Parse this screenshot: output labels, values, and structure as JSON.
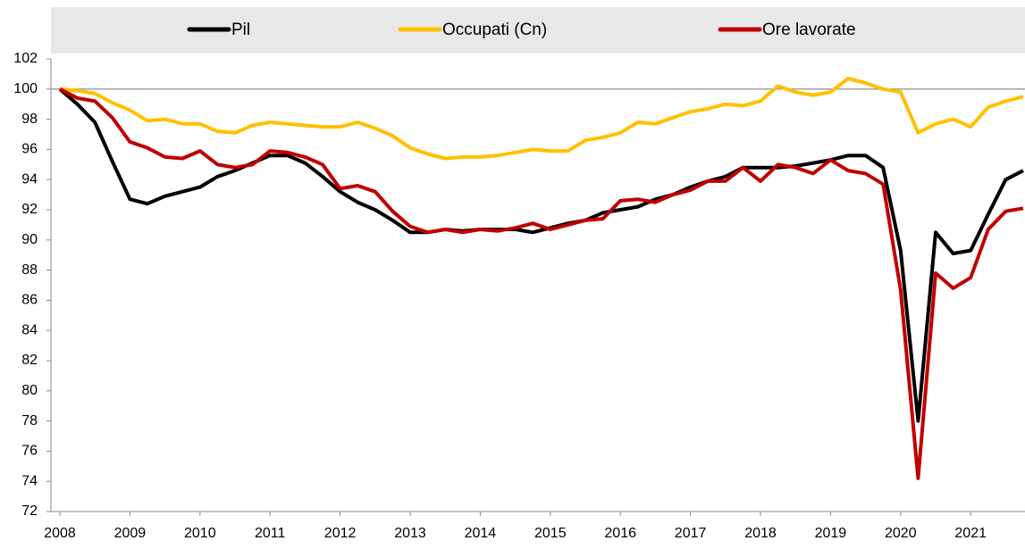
{
  "chart_data": {
    "type": "line",
    "categories": [
      "2008",
      null,
      null,
      null,
      "2009",
      null,
      null,
      null,
      "2010",
      null,
      null,
      null,
      "2011",
      null,
      null,
      null,
      "2012",
      null,
      null,
      null,
      "2013",
      null,
      null,
      null,
      "2014",
      null,
      null,
      null,
      "2015",
      null,
      null,
      null,
      "2016",
      null,
      null,
      null,
      "2017",
      null,
      null,
      null,
      "2018",
      null,
      null,
      null,
      "2019",
      null,
      null,
      null,
      "2020",
      null,
      null,
      null,
      "2021",
      null,
      null,
      null
    ],
    "series": [
      {
        "name": "Pil",
        "color": "#000000",
        "values": [
          100,
          99.0,
          97.8,
          95.2,
          92.7,
          92.4,
          92.9,
          93.2,
          93.5,
          94.2,
          94.6,
          95.1,
          95.6,
          95.6,
          95.1,
          94.2,
          93.2,
          92.5,
          92.0,
          91.3,
          90.5,
          90.5,
          90.7,
          90.6,
          90.7,
          90.7,
          90.7,
          90.5,
          90.8,
          91.1,
          91.3,
          91.8,
          92.0,
          92.2,
          92.7,
          93.0,
          93.5,
          93.9,
          94.2,
          94.8,
          94.8,
          94.8,
          94.9,
          95.1,
          95.3,
          95.6,
          95.6,
          94.8,
          89.3,
          78.0,
          90.5,
          89.1,
          89.3,
          91.7,
          94.0,
          94.6
        ]
      },
      {
        "name": "Occupati (Cn)",
        "color": "#ffc000",
        "values": [
          100,
          99.9,
          99.7,
          99.1,
          98.6,
          97.9,
          98.0,
          97.7,
          97.7,
          97.2,
          97.1,
          97.6,
          97.8,
          97.7,
          97.6,
          97.5,
          97.5,
          97.8,
          97.4,
          96.9,
          96.1,
          95.7,
          95.4,
          95.5,
          95.5,
          95.6,
          95.8,
          96.0,
          95.9,
          95.9,
          96.6,
          96.8,
          97.1,
          97.8,
          97.7,
          98.1,
          98.5,
          98.7,
          99.0,
          98.9,
          99.2,
          100.2,
          99.8,
          99.6,
          99.8,
          100.7,
          100.4,
          100.0,
          99.8,
          97.1,
          97.7,
          98.0,
          97.5,
          98.8,
          99.2,
          99.5
        ]
      },
      {
        "name": "Ore lavorate",
        "color": "#c00000",
        "values": [
          100,
          99.4,
          99.2,
          98.1,
          96.5,
          96.1,
          95.5,
          95.4,
          95.9,
          95.0,
          94.8,
          95.0,
          95.9,
          95.8,
          95.5,
          95.0,
          93.4,
          93.6,
          93.2,
          91.9,
          90.9,
          90.5,
          90.7,
          90.5,
          90.7,
          90.6,
          90.8,
          91.1,
          90.7,
          91.0,
          91.3,
          91.4,
          92.6,
          92.7,
          92.5,
          93.0,
          93.3,
          93.9,
          93.9,
          94.8,
          93.9,
          95.0,
          94.8,
          94.4,
          95.3,
          94.6,
          94.4,
          93.7,
          86.7,
          74.2,
          87.8,
          86.8,
          87.5,
          90.7,
          91.9,
          92.1
        ]
      }
    ],
    "ylim": [
      72,
      102
    ],
    "yticks": [
      72,
      74,
      76,
      78,
      80,
      82,
      84,
      86,
      88,
      90,
      92,
      94,
      96,
      98,
      100,
      102
    ],
    "reference_line": 100,
    "legend": "top"
  }
}
